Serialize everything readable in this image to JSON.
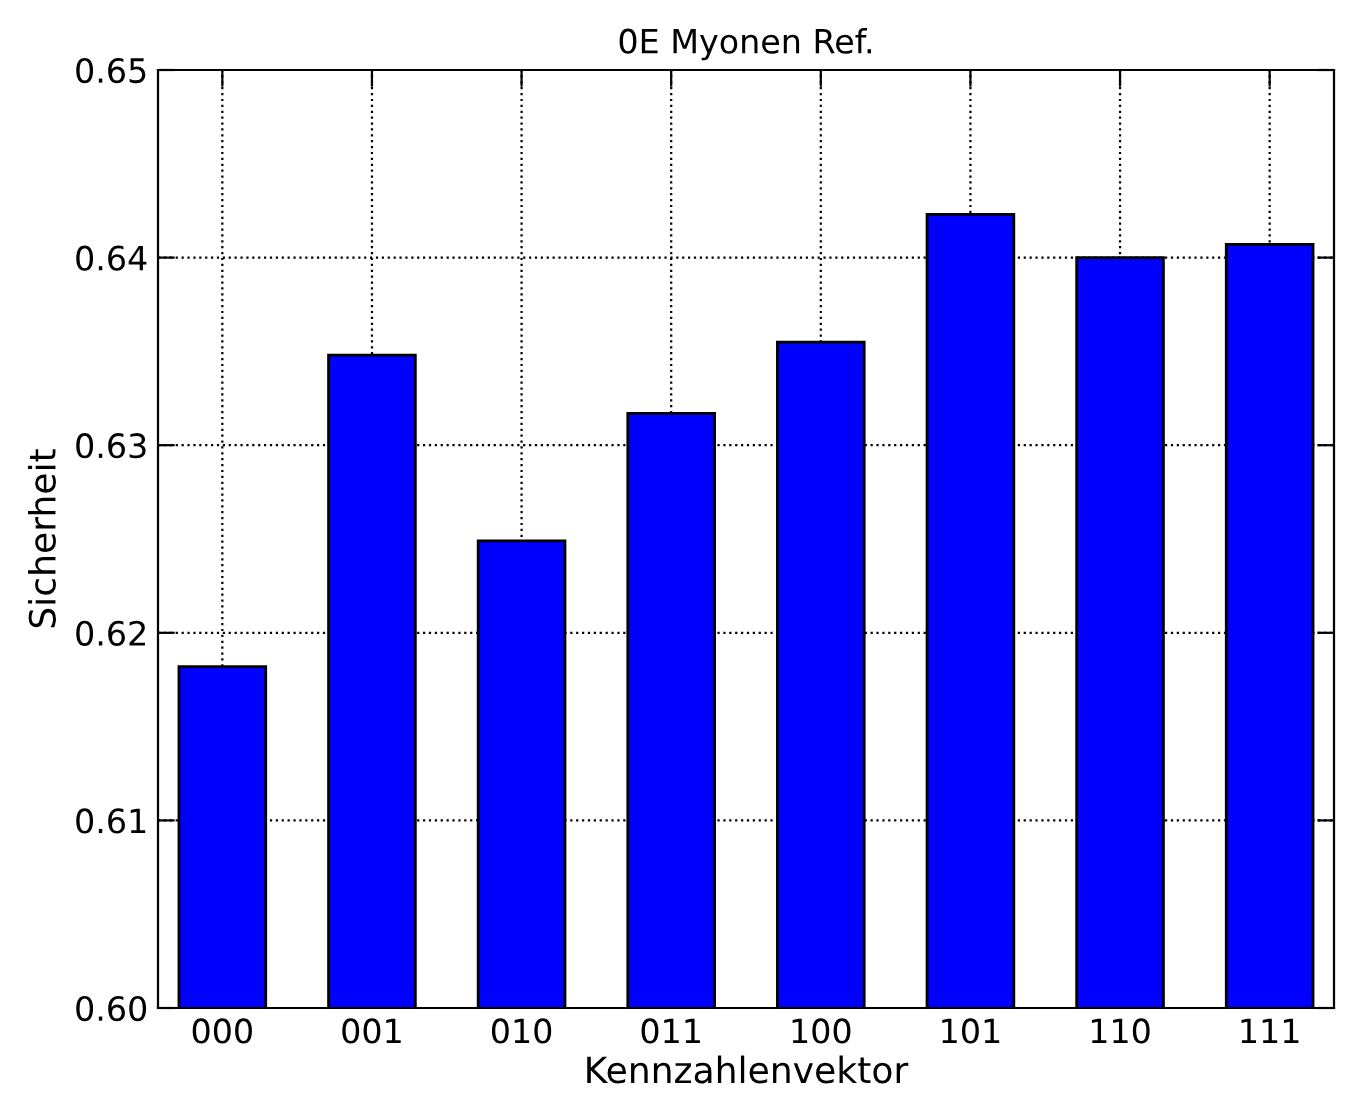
{
  "chart_data": {
    "type": "bar",
    "title": "0E Myonen Ref.",
    "xlabel": "Kennzahlenvektor",
    "ylabel": "Sicherheit",
    "categories": [
      "000",
      "001",
      "010",
      "011",
      "100",
      "101",
      "110",
      "111"
    ],
    "values": [
      0.6182,
      0.6348,
      0.6249,
      0.6317,
      0.6355,
      0.6423,
      0.64,
      0.6407
    ],
    "color": "#0000ff",
    "ylim": [
      0.6,
      0.65
    ],
    "yticks": [
      {
        "value": 0.6,
        "label": "0.60"
      },
      0.61,
      0.62,
      0.63,
      0.64,
      0.65
    ],
    "grid": true,
    "legend": false
  }
}
